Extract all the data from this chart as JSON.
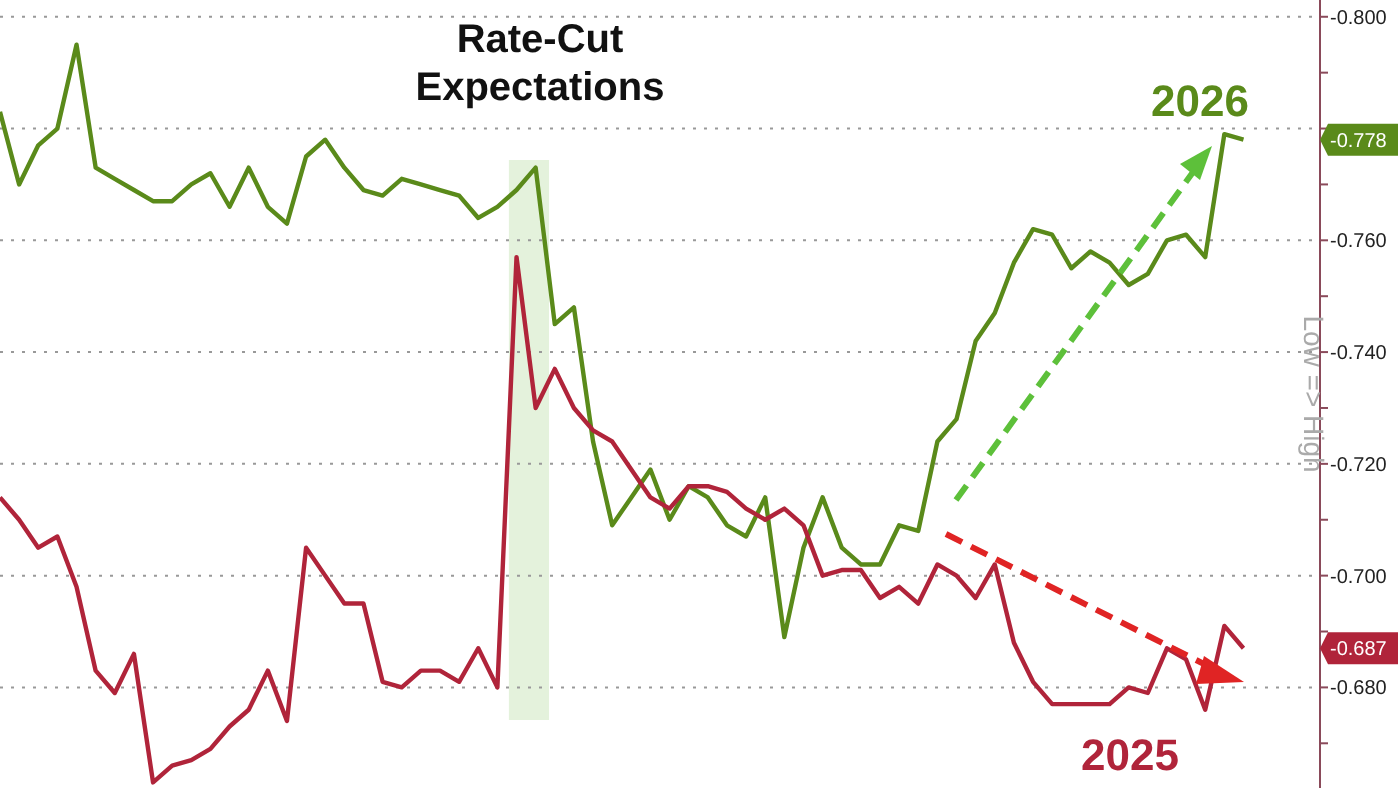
{
  "chart_data": {
    "type": "line",
    "title": "Rate-Cut Expectations",
    "ylabel": "Low => High",
    "categories": [
      null,
      null,
      null,
      null,
      null,
      null,
      null,
      null,
      null,
      null,
      null,
      null,
      null,
      null,
      null,
      null,
      null,
      null,
      null,
      null,
      null,
      null,
      null,
      null,
      null,
      null,
      null,
      null,
      null,
      null,
      null,
      null,
      null,
      null,
      null,
      null,
      null,
      null,
      null,
      null,
      null,
      null,
      null,
      null,
      null,
      null,
      null,
      null,
      null,
      null,
      null,
      null,
      null,
      null,
      null,
      null,
      null,
      null,
      null,
      null,
      null,
      null,
      null,
      null,
      null,
      null,
      null,
      null,
      null,
      null
    ],
    "series": [
      {
        "name": "2026",
        "color": "#5a8a1a",
        "values": [
          -0.783,
          -0.77,
          -0.777,
          -0.78,
          -0.795,
          -0.773,
          -0.771,
          -0.769,
          -0.767,
          -0.767,
          -0.77,
          -0.772,
          -0.766,
          -0.773,
          -0.766,
          -0.763,
          -0.775,
          -0.778,
          -0.773,
          -0.769,
          -0.768,
          -0.771,
          -0.77,
          -0.769,
          -0.768,
          -0.764,
          -0.766,
          -0.769,
          -0.773,
          -0.745,
          -0.748,
          -0.724,
          -0.709,
          -0.714,
          -0.719,
          -0.71,
          -0.716,
          -0.714,
          -0.709,
          -0.707,
          -0.714,
          -0.689,
          -0.705,
          -0.714,
          -0.705,
          -0.702,
          -0.702,
          -0.709,
          -0.708,
          -0.724,
          -0.728,
          -0.742,
          -0.747,
          -0.756,
          -0.762,
          -0.761,
          -0.755,
          -0.758,
          -0.756,
          -0.752,
          -0.754,
          -0.76,
          -0.761,
          -0.757,
          -0.779,
          -0.778,
          null,
          null,
          null,
          null
        ]
      },
      {
        "name": "2025",
        "color": "#b0243a",
        "values": [
          -0.714,
          -0.71,
          -0.705,
          -0.707,
          -0.698,
          -0.683,
          -0.679,
          -0.686,
          -0.663,
          -0.666,
          -0.667,
          -0.669,
          -0.673,
          -0.676,
          -0.683,
          -0.674,
          -0.705,
          -0.7,
          -0.695,
          -0.695,
          -0.681,
          -0.68,
          -0.683,
          -0.683,
          -0.681,
          -0.687,
          -0.68,
          -0.757,
          -0.73,
          -0.737,
          -0.73,
          -0.726,
          -0.724,
          -0.719,
          -0.714,
          -0.712,
          -0.716,
          -0.716,
          -0.715,
          -0.712,
          -0.71,
          -0.712,
          -0.709,
          -0.7,
          -0.701,
          -0.701,
          -0.696,
          -0.698,
          -0.695,
          -0.702,
          -0.7,
          -0.696,
          -0.702,
          -0.688,
          -0.681,
          -0.677,
          -0.677,
          -0.677,
          -0.677,
          -0.68,
          -0.679,
          -0.687,
          -0.685,
          -0.676,
          -0.691,
          -0.687,
          null,
          null,
          null,
          null
        ]
      }
    ],
    "ylim": [
      -0.662,
      -0.803
    ],
    "yticks": [
      {
        "value": -0.8,
        "label": "-0.800"
      },
      {
        "value": -0.79,
        "label": null
      },
      {
        "value": -0.78,
        "label": null
      },
      {
        "value": -0.77,
        "label": null
      },
      {
        "value": -0.76,
        "label": "-0.760"
      },
      {
        "value": -0.75,
        "label": null
      },
      {
        "value": -0.74,
        "label": "-0.740"
      },
      {
        "value": -0.73,
        "label": null
      },
      {
        "value": -0.72,
        "label": "-0.720"
      },
      {
        "value": -0.71,
        "label": null
      },
      {
        "value": -0.7,
        "label": "-0.700"
      },
      {
        "value": -0.69,
        "label": null
      },
      {
        "value": -0.68,
        "label": "-0.680"
      },
      {
        "value": -0.67,
        "label": null
      }
    ],
    "annotations": [
      {
        "text": "-0.778",
        "y": -0.778
      },
      {
        "text": "-0.687",
        "y": -0.687
      }
    ],
    "grid": "y"
  }
}
